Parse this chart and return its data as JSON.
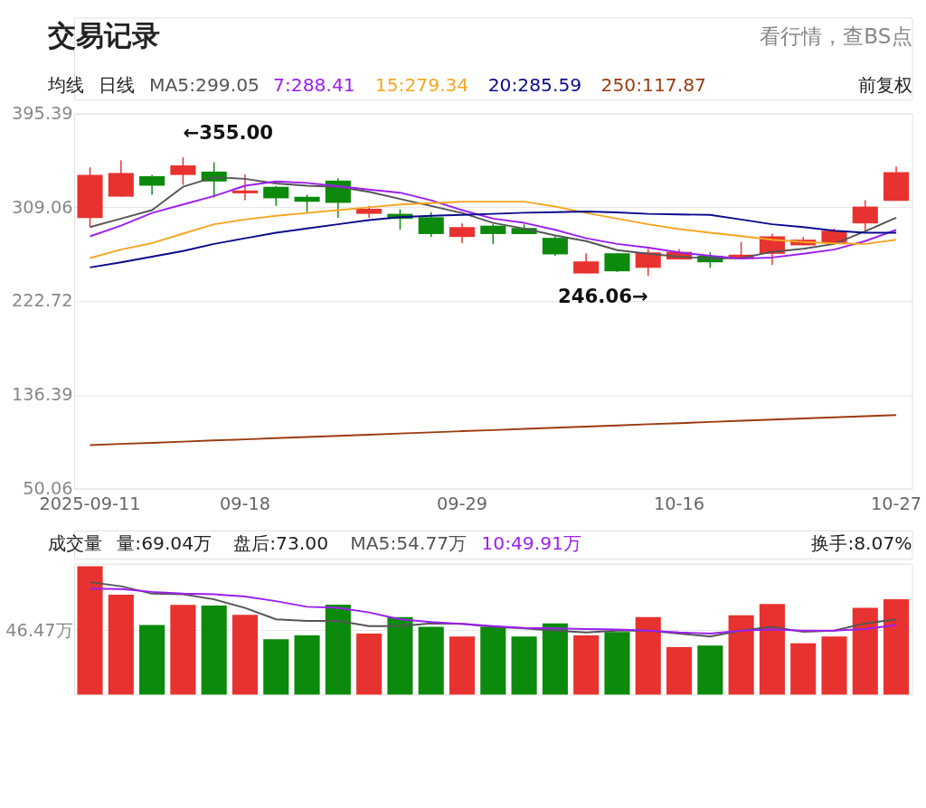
{
  "chart_data": [
    {
      "type": "candlestick",
      "title": "交易记录",
      "annotations": [
        "看行情，查BS点",
        "均线",
        "日线",
        "前复权",
        "←355.00",
        "246.06→"
      ],
      "categories": [
        "2025-09-11",
        null,
        null,
        null,
        null,
        "09-18",
        null,
        null,
        null,
        null,
        null,
        null,
        "09-29",
        null,
        null,
        null,
        null,
        null,
        null,
        "10-16",
        null,
        null,
        null,
        null,
        null,
        null,
        "10-27"
      ],
      "ohlc": [
        [
          299.2,
          345.9,
          290.9,
          338.9
        ],
        [
          318.9,
          352.4,
          318.9,
          340.7
        ],
        [
          337.8,
          338.9,
          320.7,
          329.0
        ],
        [
          338.9,
          355.0,
          329.8,
          347.7
        ],
        [
          342.0,
          350.6,
          318.1,
          332.9
        ],
        [
          322.0,
          339.4,
          315.6,
          324.6
        ],
        [
          328.0,
          328.5,
          310.4,
          317.4
        ],
        [
          318.7,
          320.7,
          304.7,
          314.3
        ],
        [
          333.7,
          335.8,
          299.5,
          313.2
        ],
        [
          303.1,
          310.4,
          299.5,
          307.8
        ],
        [
          303.1,
          307.3,
          288.4,
          298.5
        ],
        [
          300.0,
          304.7,
          281.8,
          284.5
        ],
        [
          281.8,
          294.3,
          276.2,
          290.9
        ],
        [
          292.2,
          293.5,
          275.4,
          284.5
        ],
        [
          290.1,
          293.5,
          284.5,
          284.5
        ],
        [
          281.0,
          282.6,
          264.5,
          265.8
        ],
        [
          248.2,
          266.8,
          248.2,
          259.3
        ],
        [
          266.8,
          266.8,
          249.5,
          250.2
        ],
        [
          253.4,
          270.7,
          246.06,
          267.6
        ],
        [
          261.1,
          270.7,
          261.1,
          268.1
        ],
        [
          264.5,
          267.6,
          253.4,
          258.5
        ],
        [
          261.6,
          277.2,
          261.6,
          265.5
        ],
        [
          266.3,
          284.9,
          255.9,
          282.4
        ],
        [
          274.1,
          281.8,
          274.1,
          279.3
        ],
        [
          276.2,
          289.6,
          276.2,
          287.6
        ],
        [
          294.3,
          315.6,
          287.6,
          309.8
        ],
        [
          315.0,
          346.7,
          315.0,
          341.5
        ]
      ],
      "colors": [
        "#e8322f",
        "#e8322f",
        "#0b8a0b",
        "#e8322f",
        "#0b8a0b",
        "#e8322f",
        "#0b8a0b",
        "#0b8a0b",
        "#0b8a0b",
        "#e8322f",
        "#0b8a0b",
        "#0b8a0b",
        "#e8322f",
        "#0b8a0b",
        "#0b8a0b",
        "#0b8a0b",
        "#e8322f",
        "#0b8a0b",
        "#e8322f",
        "#e8322f",
        "#0b8a0b",
        "#e8322f",
        "#e8322f",
        "#e8322f",
        "#e8322f",
        "#e8322f",
        "#e8322f"
      ],
      "series": [
        {
          "type": "line",
          "name": "MA5:299.05",
          "color": "#555555",
          "values": [
            290.9,
            298.7,
            306.5,
            328.0,
            336.8,
            335.3,
            331.1,
            329.0,
            328.0,
            323.4,
            316.8,
            310.4,
            303.9,
            294.8,
            289.6,
            283.2,
            278.0,
            269.7,
            266.3,
            263.7,
            261.9,
            262.4,
            268.1,
            270.9,
            275.4,
            287.0,
            299.5
          ]
        },
        {
          "type": "line",
          "name": "7:288.41",
          "color": "#9b1ff0",
          "values": [
            282.4,
            292.2,
            303.9,
            311.7,
            319.5,
            329.0,
            332.9,
            331.6,
            328.5,
            325.4,
            322.6,
            315.6,
            306.5,
            298.7,
            294.8,
            288.4,
            280.6,
            275.4,
            272.0,
            267.6,
            264.5,
            261.9,
            262.9,
            266.3,
            270.2,
            278.0,
            288.4
          ]
        },
        {
          "type": "line",
          "name": "15:279.34",
          "color": "#f5a623",
          "values": [
            262.4,
            270.2,
            276.2,
            284.9,
            293.5,
            297.9,
            301.3,
            303.9,
            306.5,
            309.1,
            311.7,
            312.9,
            314.3,
            314.3,
            314.3,
            309.8,
            303.9,
            298.7,
            293.5,
            289.1,
            285.7,
            282.6,
            279.3,
            277.2,
            275.9,
            275.4,
            279.3
          ]
        },
        {
          "type": "line",
          "name": "20:285.59",
          "color": "#0a0a8c",
          "values": [
            253.8,
            258.5,
            263.7,
            268.9,
            275.4,
            280.6,
            285.7,
            289.6,
            293.5,
            297.4,
            300.0,
            301.3,
            302.1,
            303.1,
            304.1,
            304.7,
            305.2,
            304.4,
            303.1,
            302.6,
            302.1,
            297.9,
            293.5,
            290.9,
            287.6,
            285.7,
            285.7
          ]
        },
        {
          "type": "line",
          "name": "250:117.87",
          "color": "#9c3a0f",
          "values": [
            90.2,
            91.3,
            92.3,
            93.4,
            94.5,
            95.5,
            96.6,
            97.7,
            98.7,
            99.8,
            100.9,
            101.9,
            103.0,
            104.0,
            105.1,
            106.2,
            107.2,
            108.3,
            109.4,
            110.4,
            111.5,
            112.6,
            113.6,
            114.7,
            115.8,
            116.8,
            117.9
          ]
        }
      ],
      "ylim": [
        50.06,
        395.39
      ],
      "yticks": [
        50.06,
        136.39,
        222.72,
        309.06,
        395.39
      ],
      "grid": "y",
      "legend": "top"
    },
    {
      "type": "bar",
      "annotations": [
        "成交量",
        "量:69.04万",
        "盘后:73.00",
        "换手:8.07%"
      ],
      "categories": [
        null,
        null,
        null,
        null,
        null,
        null,
        null,
        null,
        null,
        null,
        null,
        null,
        null,
        null,
        null,
        null,
        null,
        null,
        null,
        null,
        null,
        null,
        null,
        null,
        null,
        null,
        null
      ],
      "series": [
        {
          "type": "bar",
          "colors": [
            "#e8322f",
            "#e8322f",
            "#0b8a0b",
            "#e8322f",
            "#0b8a0b",
            "#e8322f",
            "#0b8a0b",
            "#0b8a0b",
            "#0b8a0b",
            "#e8322f",
            "#0b8a0b",
            "#0b8a0b",
            "#e8322f",
            "#0b8a0b",
            "#0b8a0b",
            "#0b8a0b",
            "#e8322f",
            "#0b8a0b",
            "#e8322f",
            "#e8322f",
            "#0b8a0b",
            "#e8322f",
            "#e8322f",
            "#e8322f",
            "#e8322f",
            "#e8322f",
            "#e8322f"
          ],
          "values": [
            92.9,
            72.3,
            50.4,
            64.9,
            64.4,
            57.8,
            40.1,
            42.9,
            65.2,
            44.2,
            56.2,
            49.1,
            42.0,
            49.1,
            42.1,
            51.6,
            42.9,
            45.4,
            56.2,
            34.3,
            35.5,
            57.4,
            65.6,
            37.2,
            42.1,
            62.8,
            69.04
          ]
        },
        {
          "type": "line",
          "name": "MA5:54.77万",
          "color": "#555555",
          "values": [
            81.4,
            78.5,
            73.1,
            72.7,
            69.0,
            62.8,
            54.5,
            53.3,
            53.3,
            49.6,
            49.6,
            51.6,
            51.2,
            49.1,
            47.9,
            46.3,
            45.0,
            46.3,
            46.3,
            44.2,
            42.1,
            46.3,
            49.1,
            45.4,
            46.3,
            51.6,
            54.5
          ]
        },
        {
          "type": "line",
          "name": "10:49.91万",
          "color": "#9b1ff0",
          "values": [
            76.8,
            76.4,
            74.4,
            73.1,
            72.7,
            71.0,
            67.7,
            63.6,
            62.8,
            59.5,
            54.5,
            52.5,
            51.2,
            49.6,
            48.3,
            47.9,
            47.5,
            47.1,
            46.3,
            45.0,
            44.2,
            46.3,
            47.1,
            46.3,
            46.3,
            47.5,
            50.4
          ]
        }
      ],
      "ylim": [
        0,
        94.8
      ],
      "yticks": [
        {
          "value": 46.47,
          "label": "46.47万"
        }
      ],
      "grid": "y",
      "legend": "top",
      "tick_labels": "y"
    }
  ]
}
